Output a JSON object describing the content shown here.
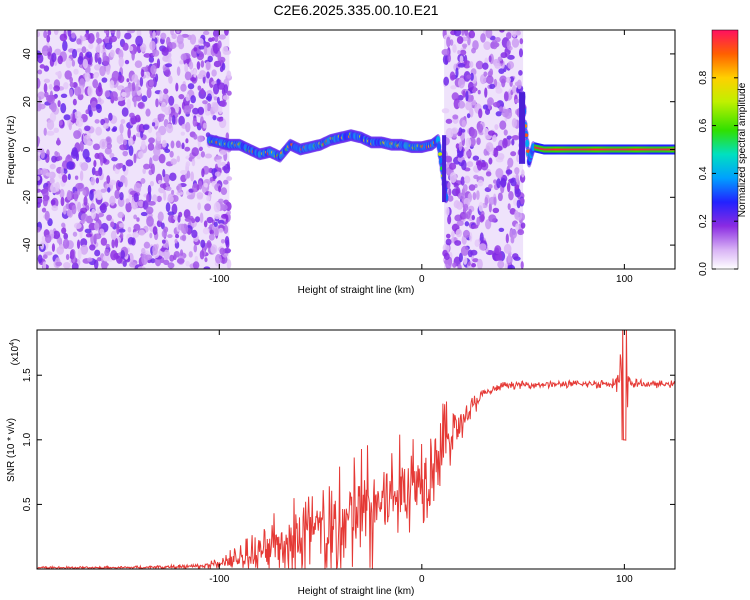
{
  "figure_title": "C2E6.2025.335.00.10.E21",
  "chart_data": [
    {
      "type": "heatmap",
      "name": "spectrogram",
      "title": "C2E6.2025.335.00.10.E21",
      "xlabel": "Height of straight line (km)",
      "ylabel": "Frequency (Hz)",
      "xlim": [
        -190,
        125
      ],
      "ylim": [
        -50,
        50
      ],
      "xticks": [
        -100,
        0,
        100
      ],
      "xtick_labels": [
        "-100",
        "0",
        "100"
      ],
      "yticks": [
        -40,
        -20,
        0,
        20,
        40
      ],
      "ytick_labels": [
        "-40",
        "-20",
        "0",
        "20",
        "40"
      ],
      "colorbar": {
        "label": "Normalized spectral amplitude",
        "range": [
          0,
          1
        ],
        "ticks": [
          0.0,
          0.2,
          0.4,
          0.6,
          0.8
        ],
        "tick_labels": [
          "0.0",
          "0.2",
          "0.4",
          "0.6",
          "0.8"
        ]
      },
      "noise_regions_km": [
        [
          -190,
          -95
        ],
        [
          11,
          50
        ]
      ],
      "signal_trace": {
        "x": [
          -105,
          -100,
          -95,
          -90,
          -85,
          -80,
          -75,
          -70,
          -65,
          -60,
          -55,
          -50,
          -45,
          -40,
          -35,
          -30,
          -25,
          -20,
          -15,
          -10,
          -5,
          0,
          5,
          8,
          10,
          12,
          50,
          51,
          53,
          55,
          60,
          80,
          100,
          125
        ],
        "freq": [
          4,
          3,
          2,
          2,
          0,
          -2,
          -1,
          -3,
          2,
          0,
          1,
          2,
          4,
          5,
          6,
          5,
          3,
          3,
          2,
          2,
          1,
          1,
          2,
          4,
          -8,
          -20,
          22,
          10,
          -5,
          1,
          0,
          0,
          0,
          0
        ]
      }
    },
    {
      "type": "line",
      "name": "snr",
      "xlabel": "Height of straight line (km)",
      "ylabel": "SNR (10 * v/v)",
      "y_scale_label": "(x10",
      "y_scale_exponent": "4",
      "xlim": [
        -190,
        125
      ],
      "ylim": [
        0,
        1.85
      ],
      "xticks": [
        -100,
        0,
        100
      ],
      "xtick_labels": [
        "-100",
        "0",
        "100"
      ],
      "yticks": [
        0.5,
        1.0,
        1.5
      ],
      "ytick_labels": [
        "0.5",
        "1.0",
        "1.5"
      ],
      "color": "#e53935",
      "series": [
        {
          "name": "SNR",
          "x": [
            -190,
            -150,
            -110,
            -100,
            -90,
            -80,
            -70,
            -60,
            -50,
            -40,
            -30,
            -20,
            -10,
            0,
            10,
            20,
            30,
            40,
            60,
            80,
            95,
            100,
            103,
            110,
            125
          ],
          "y": [
            0.01,
            0.01,
            0.02,
            0.04,
            0.08,
            0.12,
            0.18,
            0.25,
            0.3,
            0.35,
            0.45,
            0.52,
            0.6,
            0.72,
            0.95,
            1.15,
            1.35,
            1.42,
            1.43,
            1.43,
            1.44,
            1.45,
            1.44,
            1.43,
            1.43
          ],
          "spread": [
            0.01,
            0.01,
            0.02,
            0.05,
            0.12,
            0.2,
            0.3,
            0.42,
            0.45,
            0.5,
            0.55,
            0.5,
            0.45,
            0.4,
            0.35,
            0.15,
            0.04,
            0.03,
            0.03,
            0.03,
            0.04,
            0.4,
            0.04,
            0.03,
            0.03
          ]
        }
      ]
    }
  ]
}
